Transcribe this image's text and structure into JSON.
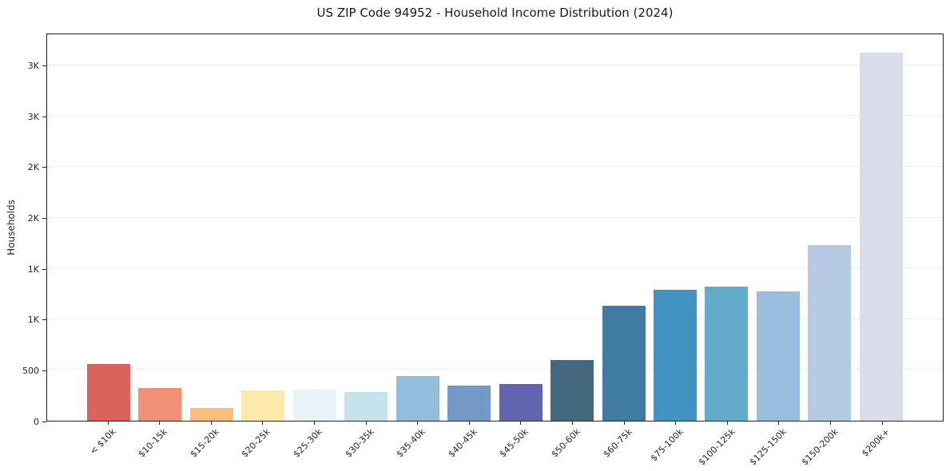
{
  "chart_data": {
    "type": "bar",
    "title": "US ZIP Code 94952 - Household Income Distribution (2024)",
    "xlabel": "",
    "ylabel": "Households",
    "categories": [
      "< $10k",
      "$10-15k",
      "$15-20k",
      "$20-25k",
      "$25-30k",
      "$30-35k",
      "$35-40k",
      "$40-45k",
      "$45-50k",
      "$50-60k",
      "$60-75k",
      "$75-100k",
      "$100-125k",
      "$125-150k",
      "$150-200k",
      "$200k+"
    ],
    "values": [
      560,
      320,
      125,
      300,
      310,
      280,
      440,
      350,
      365,
      600,
      1130,
      1290,
      1320,
      1275,
      1730,
      3620
    ],
    "bar_colors": [
      "#d95b53",
      "#f08a6d",
      "#f9ba72",
      "#fce8a6",
      "#e8f2f7",
      "#c2e0ec",
      "#8cbad9",
      "#6b93c5",
      "#5a5ead",
      "#3a6076",
      "#35749e",
      "#388dbe",
      "#5ca5c7",
      "#93b9da",
      "#b3c7e1",
      "#d8dae9"
    ],
    "ylim": [
      0,
      3820
    ],
    "yticks": {
      "values": [
        0,
        500,
        1000,
        1500,
        2000,
        2500,
        3000,
        3500
      ],
      "labels": [
        "0",
        "500",
        "1K",
        "1K",
        "2K",
        "2K",
        "3K",
        "3K"
      ]
    },
    "grid": "horizontal",
    "legend_position": "none",
    "colors": {
      "background": "#ffffff",
      "gridline": "#ebebf0",
      "spine": "#262626",
      "text": "#262626"
    }
  }
}
